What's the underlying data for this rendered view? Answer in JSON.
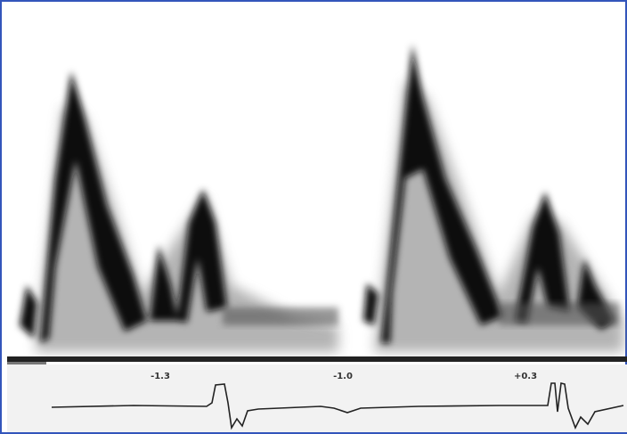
{
  "scale_labels": [
    "-1.3",
    "-1.0",
    "+0.3"
  ]
}
